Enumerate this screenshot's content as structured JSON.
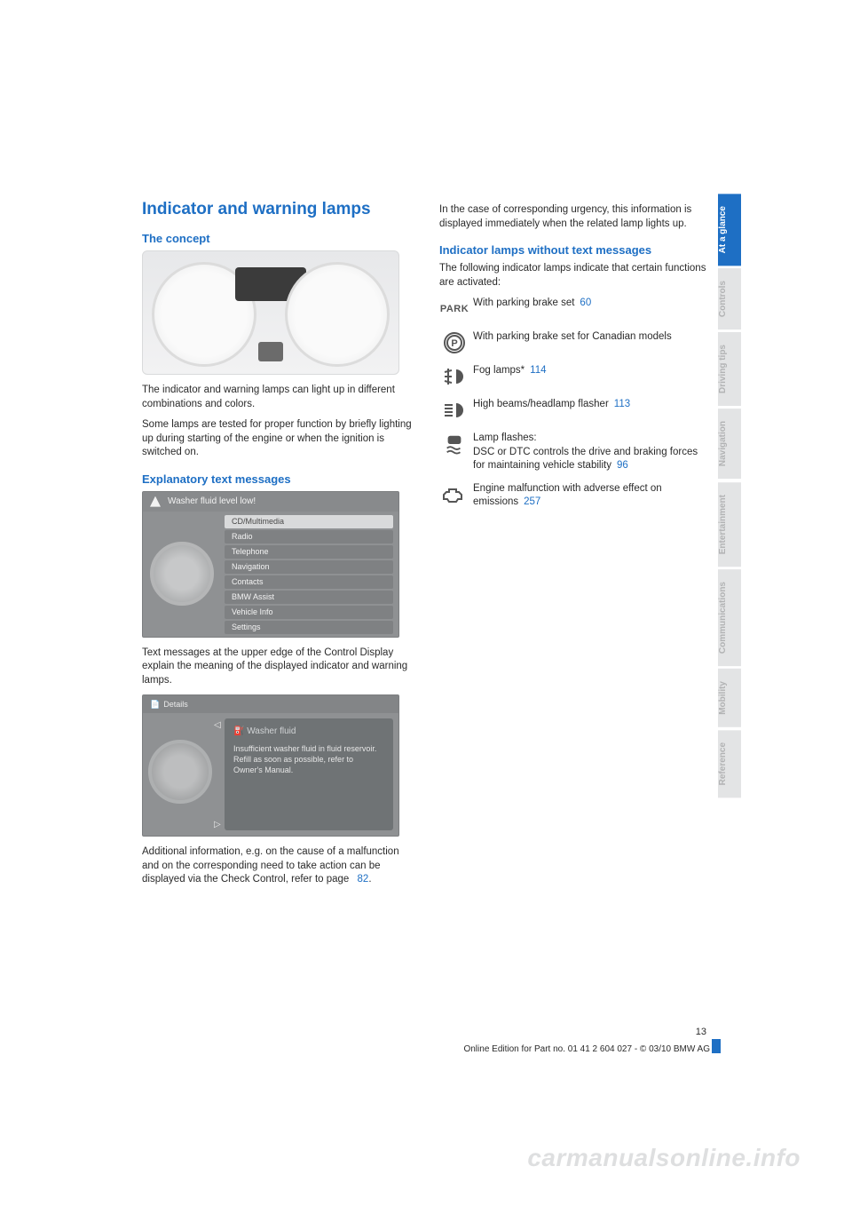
{
  "colors": {
    "accent": "#1e6fc4",
    "text": "#2a2a2a",
    "tabInactiveBg": "#e3e4e5",
    "tabInactiveText": "#b2b3b4"
  },
  "title": "Indicator and warning lamps",
  "concept": {
    "heading": "The concept",
    "p1": "The indicator and warning lamps can light up in different combinations and colors.",
    "p2": "Some lamps are tested for proper function by briefly lighting up during starting of the engine or when the ignition is switched on."
  },
  "explain": {
    "heading": "Explanatory text messages",
    "menu_warning": "Washer fluid level low!",
    "menu_items": [
      "CD/Multimedia",
      "Radio",
      "Telephone",
      "Navigation",
      "Contacts",
      "BMW Assist",
      "Vehicle Info",
      "Settings"
    ],
    "p1": "Text messages at the upper edge of the Control Display explain the meaning of the displayed indicator and warning lamps.",
    "detail_topbar": "Details",
    "detail_title": "Washer fluid",
    "detail_body": "Insufficient washer fluid in fluid reservoir. Refill as soon as possible, refer to Owner's Manual.",
    "p2a": "Additional information, e.g. on the cause of a malfunction and on the corresponding need to take action can be displayed via the Check Control, refer to page",
    "p2ref": "82",
    "p2b": "."
  },
  "right": {
    "intro": "In the case of corresponding urgency, this information is displayed immediately when the related lamp lights up.",
    "heading": "Indicator lamps without text messages",
    "lead": "The following indicator lamps indicate that certain functions are activated:",
    "rows": [
      {
        "icon": "park-text",
        "text": "With parking brake set",
        "ref": "60"
      },
      {
        "icon": "park-circle",
        "text": "With parking brake set for Canadian models",
        "ref": ""
      },
      {
        "icon": "fog",
        "text": "Fog lamps*",
        "ref": "114"
      },
      {
        "icon": "highbeam",
        "text": "High beams/headlamp flasher",
        "ref": "113"
      },
      {
        "icon": "dsc",
        "text": "Lamp flashes:\nDSC or DTC controls the drive and braking forces for maintaining vehicle stability",
        "ref": "96"
      },
      {
        "icon": "engine",
        "text": "Engine malfunction with adverse effect on emissions",
        "ref": "257"
      }
    ]
  },
  "tabs": [
    "At a glance",
    "Controls",
    "Driving tips",
    "Navigation",
    "Entertainment",
    "Communications",
    "Mobility",
    "Reference"
  ],
  "tabs_active_index": 0,
  "footer": {
    "page": "13",
    "line": "Online Edition for Part no. 01 41 2 604 027 - © 03/10 BMW AG"
  },
  "watermark": "carmanualsonline.info"
}
